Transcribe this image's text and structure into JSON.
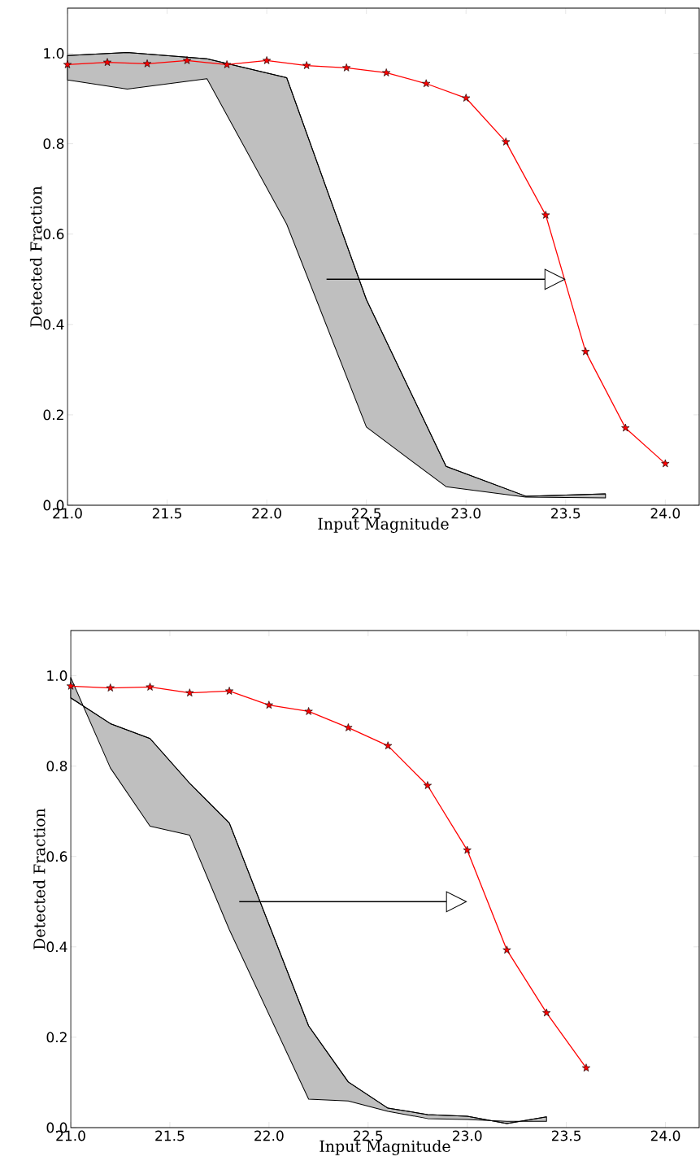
{
  "chart_data": [
    {
      "type": "line",
      "xlabel": "Input  Magnitude",
      "ylabel": "Detected  Fraction",
      "xlim": [
        21,
        24.17
      ],
      "ylim": [
        0,
        1.1
      ],
      "xticks": [
        {
          "value": 21,
          "label": "21.0"
        },
        {
          "value": 21.5,
          "label": "21.5"
        },
        {
          "value": 22,
          "label": "22.0"
        },
        {
          "value": 22.5,
          "label": "22.5"
        },
        {
          "value": 23,
          "label": "23.0"
        },
        {
          "value": 23.5,
          "label": "23.5"
        },
        {
          "value": 24,
          "label": "24.0"
        }
      ],
      "yticks": [
        {
          "value": 0,
          "label": "0.0"
        },
        {
          "value": 0.2,
          "label": "0.2"
        },
        {
          "value": 0.4,
          "label": "0.4"
        },
        {
          "value": 0.6,
          "label": "0.6"
        },
        {
          "value": 0.8,
          "label": "0.8"
        },
        {
          "value": 1,
          "label": "1.0"
        }
      ],
      "marker": "star",
      "series": [
        {
          "type": "line",
          "color": "#000000",
          "marker": "none",
          "x": [
            21.0,
            21.3,
            21.7,
            22.1,
            22.5,
            22.9,
            23.3,
            23.7
          ],
          "values": [
            0.995,
            1.002,
            0.988,
            0.946,
            0.455,
            0.086,
            0.02,
            0.025
          ],
          "upper": [
            0.995,
            1.002,
            0.988,
            0.946,
            0.455,
            0.086,
            0.02,
            0.025
          ],
          "lower": [
            0.941,
            0.921,
            0.944,
            0.622,
            0.173,
            0.041,
            0.018,
            0.016
          ]
        },
        {
          "type": "line",
          "color": "#ff0000",
          "x": [
            21.0,
            21.2,
            21.4,
            21.6,
            21.8,
            22.0,
            22.2,
            22.4,
            22.6,
            22.8,
            23.0,
            23.2,
            23.4,
            23.6,
            23.8,
            24.0
          ],
          "values": [
            0.975,
            0.98,
            0.977,
            0.984,
            0.975,
            0.984,
            0.973,
            0.968,
            0.957,
            0.933,
            0.901,
            0.804,
            0.642,
            0.34,
            0.171,
            0.092
          ]
        }
      ]
    },
    {
      "type": "line",
      "xlabel": "Input  Magnitude",
      "ylabel": "Detected  Fraction",
      "xlim": [
        21,
        24.17
      ],
      "ylim": [
        0,
        1.1
      ],
      "xticks": [
        {
          "value": 21,
          "label": "21.0"
        },
        {
          "value": 21.5,
          "label": "21.5"
        },
        {
          "value": 22,
          "label": "22.0"
        },
        {
          "value": 22.5,
          "label": "22.5"
        },
        {
          "value": 23,
          "label": "23.0"
        },
        {
          "value": 23.5,
          "label": "23.5"
        },
        {
          "value": 24,
          "label": "24.0"
        }
      ],
      "yticks": [
        {
          "value": 0,
          "label": "0.0"
        },
        {
          "value": 0.2,
          "label": "0.2"
        },
        {
          "value": 0.4,
          "label": "0.4"
        },
        {
          "value": 0.6,
          "label": "0.6"
        },
        {
          "value": 0.8,
          "label": "0.8"
        },
        {
          "value": 1,
          "label": "1.0"
        }
      ],
      "marker": "star",
      "series": [
        {
          "type": "line",
          "color": "#000000",
          "marker": "none",
          "x": [
            21.0,
            21.2,
            21.4,
            21.6,
            21.8,
            22.2,
            22.4,
            22.6,
            22.8,
            23.0,
            23.2,
            23.4
          ],
          "values": [
            0.951,
            0.894,
            0.861,
            0.762,
            0.674,
            0.225,
            0.101,
            0.043,
            0.029,
            0.025,
            0.009,
            0.024
          ],
          "upper": [
            0.951,
            0.894,
            0.861,
            0.762,
            0.674,
            0.225,
            0.101,
            0.043,
            0.029,
            0.025,
            0.009,
            0.024
          ],
          "lower": [
            0.996,
            0.796,
            0.667,
            0.647,
            0.438,
            0.063,
            0.059,
            0.036,
            0.02,
            0.018,
            0.014,
            0.014
          ]
        },
        {
          "type": "line",
          "color": "#ff0000",
          "x": [
            21.0,
            21.2,
            21.4,
            21.6,
            21.8,
            22.0,
            22.2,
            22.4,
            22.6,
            22.8,
            23.0,
            23.2,
            23.4,
            23.6
          ],
          "values": [
            0.977,
            0.973,
            0.975,
            0.962,
            0.966,
            0.935,
            0.921,
            0.885,
            0.845,
            0.757,
            0.614,
            0.393,
            0.254,
            0.132
          ]
        }
      ]
    }
  ]
}
